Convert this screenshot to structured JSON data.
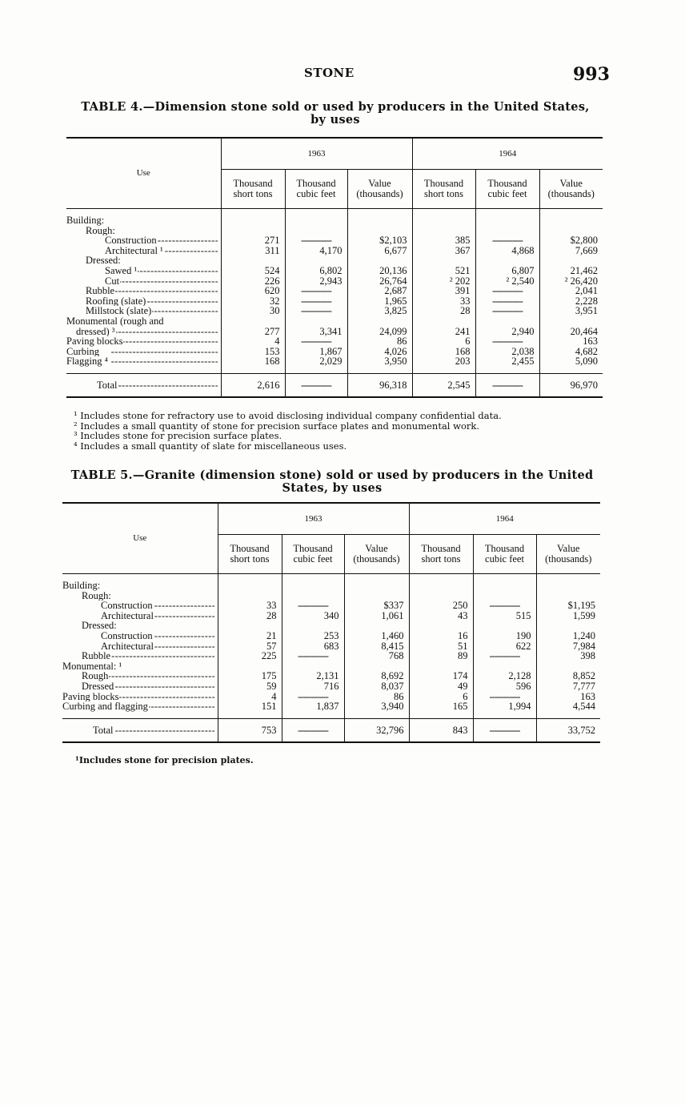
{
  "header": {
    "title": "STONE",
    "page_number": "993"
  },
  "table4": {
    "caption_line1": "TABLE 4.—Dimension stone sold or used by producers in the United States,",
    "caption_line2": "by uses",
    "use_header": "Use",
    "years": [
      "1963",
      "1964"
    ],
    "subheaders": [
      "Thousand short tons",
      "Thousand cubic feet",
      "Value (thousands)",
      "Thousand short tons",
      "Thousand cubic feet",
      "Value (thousands)"
    ],
    "rows": [
      {
        "label": "Building:",
        "indent": 0,
        "cells": []
      },
      {
        "label": "Rough:",
        "indent": 1,
        "cells": []
      },
      {
        "label": "Construction",
        "indent": 2,
        "cells": [
          "271",
          "",
          "$2,103",
          "385",
          "",
          "$2,800"
        ]
      },
      {
        "label": "Architectural ¹",
        "indent": 2,
        "cells": [
          "311",
          "4,170",
          "6,677",
          "367",
          "4,868",
          "7,669"
        ]
      },
      {
        "label": "Dressed:",
        "indent": 1,
        "cells": []
      },
      {
        "label": "Sawed ¹",
        "indent": 2,
        "cells": [
          "524",
          "6,802",
          "20,136",
          "521",
          "6,807",
          "21,462"
        ]
      },
      {
        "label": "Cut",
        "indent": 2,
        "cells": [
          "226",
          "2,943",
          "26,764",
          "² 202",
          "² 2,540",
          "² 26,420"
        ]
      },
      {
        "label": "Rubble",
        "indent": 1,
        "cells": [
          "620",
          "",
          "2,687",
          "391",
          "",
          "2,041"
        ]
      },
      {
        "label": "Roofing (slate)",
        "indent": 1,
        "cells": [
          "32",
          "",
          "1,965",
          "33",
          "",
          "2,228"
        ]
      },
      {
        "label": "Millstock (slate)",
        "indent": 1,
        "cells": [
          "30",
          "",
          "3,825",
          "28",
          "",
          "3,951"
        ]
      },
      {
        "label": "Monumental (rough and",
        "indent": 0,
        "cells": []
      },
      {
        "label": "dressed) ³",
        "indent": 0.5,
        "cells": [
          "277",
          "3,341",
          "24,099",
          "241",
          "2,940",
          "20,464"
        ]
      },
      {
        "label": "Paving blocks",
        "indent": 0,
        "cells": [
          "4",
          "",
          "86",
          "6",
          "",
          "163"
        ]
      },
      {
        "label": "Curbing",
        "indent": 0,
        "cells": [
          "153",
          "1,867",
          "4,026",
          "168",
          "2,038",
          "4,682"
        ]
      },
      {
        "label": "Flagging ⁴",
        "indent": 0,
        "cells": [
          "168",
          "2,029",
          "3,950",
          "203",
          "2,455",
          "5,090"
        ]
      }
    ],
    "total": {
      "label": "Total",
      "cells": [
        "2,616",
        "",
        "96,318",
        "2,545",
        "",
        "96,970"
      ]
    },
    "footnotes": [
      "¹ Includes stone for refractory use to avoid disclosing individual company confidential data.",
      "² Includes a small quantity of stone for precision surface plates and monumental work.",
      "³ Includes stone for precision surface plates.",
      "⁴ Includes a small quantity of slate for miscellaneous uses."
    ]
  },
  "table5": {
    "caption_line1": "TABLE 5.—Granite (dimension stone) sold or used by producers in the United",
    "caption_line2": "States, by uses",
    "use_header": "Use",
    "years": [
      "1963",
      "1964"
    ],
    "subheaders": [
      "Thousand short tons",
      "Thousand cubic feet",
      "Value (thousands)",
      "Thousand short tons",
      "Thousand cubic feet",
      "Value (thousands)"
    ],
    "rows": [
      {
        "label": "Building:",
        "indent": 0,
        "cells": []
      },
      {
        "label": "Rough:",
        "indent": 1,
        "cells": []
      },
      {
        "label": "Construction",
        "indent": 2,
        "cells": [
          "33",
          "",
          "$337",
          "250",
          "",
          "$1,195"
        ]
      },
      {
        "label": "Architectural",
        "indent": 2,
        "cells": [
          "28",
          "340",
          "1,061",
          "43",
          "515",
          "1,599"
        ]
      },
      {
        "label": "Dressed:",
        "indent": 1,
        "cells": []
      },
      {
        "label": "Construction",
        "indent": 2,
        "cells": [
          "21",
          "253",
          "1,460",
          "16",
          "190",
          "1,240"
        ]
      },
      {
        "label": "Architectural",
        "indent": 2,
        "cells": [
          "57",
          "683",
          "8,415",
          "51",
          "622",
          "7,984"
        ]
      },
      {
        "label": "Rubble",
        "indent": 1,
        "cells": [
          "225",
          "",
          "768",
          "89",
          "",
          "398"
        ]
      },
      {
        "label": "Monumental: ¹",
        "indent": 0,
        "cells": []
      },
      {
        "label": "Rough",
        "indent": 1,
        "cells": [
          "175",
          "2,131",
          "8,692",
          "174",
          "2,128",
          "8,852"
        ]
      },
      {
        "label": "Dressed",
        "indent": 1,
        "cells": [
          "59",
          "716",
          "8,037",
          "49",
          "596",
          "7,777"
        ]
      },
      {
        "label": "Paving blocks",
        "indent": 0,
        "cells": [
          "4",
          "",
          "86",
          "6",
          "",
          "163"
        ]
      },
      {
        "label": "Curbing and flagging",
        "indent": 0,
        "cells": [
          "151",
          "1,837",
          "3,940",
          "165",
          "1,994",
          "4,544"
        ]
      }
    ],
    "total": {
      "label": "Total",
      "cells": [
        "753",
        "",
        "32,796",
        "843",
        "",
        "33,752"
      ]
    },
    "footnotes": [
      "¹Includes stone for precision plates."
    ]
  }
}
